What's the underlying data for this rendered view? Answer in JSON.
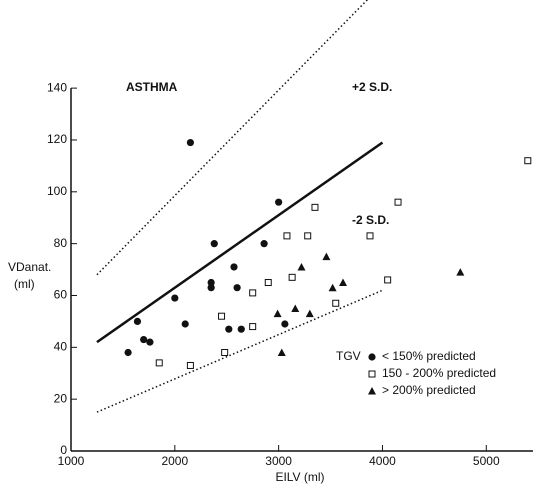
{
  "chart_data": {
    "type": "scatter",
    "xlabel": "EILV (ml)",
    "ylabel": "VDanat.",
    "ylabel_unit": "(ml)",
    "annotations": [
      "ASTHMA",
      "+2 S.D.",
      "-2 S.D."
    ],
    "legend_title": "TGV",
    "xlim": [
      1000,
      5450
    ],
    "ylim": [
      0,
      174
    ],
    "xticks": [
      1000,
      2000,
      3000,
      4000,
      5000
    ],
    "yticks": [
      0,
      20,
      40,
      60,
      80,
      100,
      120,
      140
    ],
    "series": [
      {
        "name": "< 150% predicted",
        "marker": "circle",
        "color": "#111",
        "x": [
          1550,
          1640,
          1700,
          1760,
          2000,
          2100,
          2150,
          2350,
          2350,
          2380,
          2520,
          2570,
          2600,
          2640,
          2860,
          3000,
          3060
        ],
        "values": [
          38,
          50,
          43,
          42,
          59,
          49,
          119,
          65,
          63,
          80,
          47,
          71,
          63,
          47,
          80,
          96,
          49
        ]
      },
      {
        "name": "150 - 200% predicted",
        "marker": "square",
        "color": "#111",
        "x": [
          1850,
          2150,
          2450,
          2480,
          2750,
          2750,
          2900,
          3080,
          3130,
          3280,
          3350,
          3550,
          3880,
          4050,
          4150,
          5400
        ],
        "values": [
          34,
          33,
          52,
          38,
          61,
          48,
          65,
          83,
          67,
          83,
          94,
          57,
          83,
          66,
          96,
          112
        ]
      },
      {
        "name": "> 200% predicted",
        "marker": "triangle",
        "color": "#111",
        "x": [
          2990,
          3030,
          3160,
          3220,
          3300,
          3460,
          3520,
          3620,
          4750
        ],
        "values": [
          53,
          38,
          55,
          71,
          53,
          75,
          63,
          65,
          69
        ]
      }
    ],
    "lines": [
      {
        "style": "solid",
        "x": [
          1250,
          4000
        ],
        "values": [
          42,
          119
        ]
      },
      {
        "style": "dotted",
        "x": [
          1250,
          4000
        ],
        "values": [
          68,
          180
        ]
      },
      {
        "style": "dotted",
        "x": [
          1250,
          4000
        ],
        "values": [
          15,
          62
        ]
      }
    ]
  }
}
